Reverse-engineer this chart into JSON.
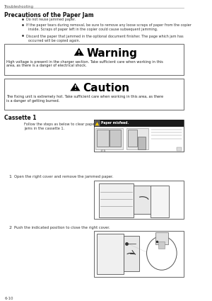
{
  "page_header": "Troubleshooting",
  "section_title": "Precautions of the Paper Jam",
  "bullets": [
    "Do not reuse jammed paper.",
    "If the paper tears during removal, be sure to remove any loose scraps of paper from the copier\n  inside. Scraps of paper left in the copier could cause subsequent jamming.",
    "Discard the paper that jammed in the optional document finisher. The page which jam has\n  occurred will be copied again."
  ],
  "warning_title": "Warning",
  "warning_text": "High voltage is present in the charger section. Take sufficient care when working in this\narea, as there is a danger of electrical shock.",
  "caution_title": "Caution",
  "caution_text": "The fixing unit is extremely hot. Take sufficient care when working in this area, as there\nis a danger of getting burned.",
  "cassette_title": "Cassette 1",
  "cassette_intro": "Follow the steps as below to clear paper\njams in the cassette 1.",
  "step1_num": "1",
  "step1_text": "Open the right cover and remove the jammed paper.",
  "step2_num": "2",
  "step2_text": "Push the indicated position to close the right cover.",
  "page_num": "6-10",
  "bg_color": "#ffffff",
  "text_color": "#333333",
  "dark_text": "#111111",
  "header_line_color": "#aaaaaa",
  "box_border": "#777777",
  "img_line_color": "#555555"
}
